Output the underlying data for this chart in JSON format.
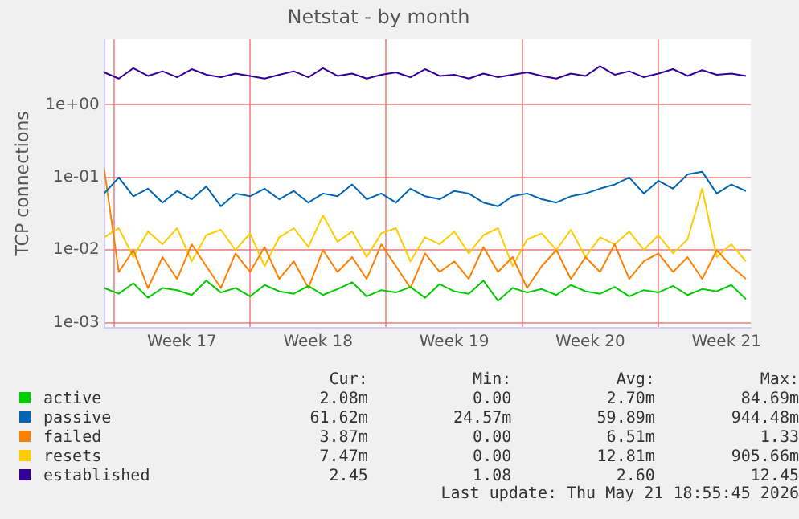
{
  "chart_data": {
    "type": "line",
    "title": "Netstat - by month",
    "ylabel": "TCP connections",
    "log": "y",
    "grid": true,
    "legend": "bottom",
    "marker": "none",
    "line_style": "solid",
    "xlim": [
      "2026-04-19T12:00",
      "2026-05-22T18:00"
    ],
    "xticks": [
      {
        "value": "2026-04-20T00:00",
        "label": null
      },
      {
        "value": "2026-04-23T12:00",
        "label": "Week 17"
      },
      {
        "value": "2026-04-27T00:00",
        "label": null
      },
      {
        "value": "2026-04-30T12:00",
        "label": "Week 18"
      },
      {
        "value": "2026-05-04T00:00",
        "label": null
      },
      {
        "value": "2026-05-07T12:00",
        "label": "Week 19"
      },
      {
        "value": "2026-05-11T00:00",
        "label": null
      },
      {
        "value": "2026-05-14T12:00",
        "label": "Week 20"
      },
      {
        "value": "2026-05-18T00:00",
        "label": null
      },
      {
        "value": "2026-05-21T12:00",
        "label": "Week 21"
      }
    ],
    "ylim": [
      0.00085,
      8
    ],
    "yticks": [
      {
        "value": 0.001,
        "label": "1e-03"
      },
      {
        "value": 0.01,
        "label": "1e-02"
      },
      {
        "value": 0.1,
        "label": "1e-01"
      },
      {
        "value": 1,
        "label": "1e+00"
      }
    ],
    "x": [
      "2026-04-19T12:00",
      "2026-04-20T06:00",
      "2026-04-21T00:00",
      "2026-04-21T18:00",
      "2026-04-22T12:00",
      "2026-04-23T06:00",
      "2026-04-24T00:00",
      "2026-04-24T18:00",
      "2026-04-25T12:00",
      "2026-04-26T06:00",
      "2026-04-27T00:00",
      "2026-04-27T18:00",
      "2026-04-28T12:00",
      "2026-04-29T06:00",
      "2026-04-30T00:00",
      "2026-04-30T18:00",
      "2026-05-01T12:00",
      "2026-05-02T06:00",
      "2026-05-03T00:00",
      "2026-05-03T18:00",
      "2026-05-04T12:00",
      "2026-05-05T06:00",
      "2026-05-06T00:00",
      "2026-05-06T18:00",
      "2026-05-07T12:00",
      "2026-05-08T06:00",
      "2026-05-09T00:00",
      "2026-05-09T18:00",
      "2026-05-10T12:00",
      "2026-05-11T06:00",
      "2026-05-12T00:00",
      "2026-05-12T18:00",
      "2026-05-13T12:00",
      "2026-05-14T06:00",
      "2026-05-15T00:00",
      "2026-05-15T18:00",
      "2026-05-16T12:00",
      "2026-05-17T06:00",
      "2026-05-18T00:00",
      "2026-05-18T18:00",
      "2026-05-19T12:00",
      "2026-05-20T06:00",
      "2026-05-21T00:00",
      "2026-05-21T18:00",
      "2026-05-22T12:00"
    ],
    "series": [
      {
        "name": "active",
        "color": "#00cc00",
        "values": [
          0.003,
          0.0025,
          0.0035,
          0.0022,
          0.003,
          0.0028,
          0.0024,
          0.0038,
          0.0026,
          0.003,
          0.0023,
          0.0033,
          0.0027,
          0.0025,
          0.0032,
          0.0024,
          0.0029,
          0.0036,
          0.0023,
          0.0028,
          0.0026,
          0.0031,
          0.0022,
          0.0034,
          0.0027,
          0.0025,
          0.0038,
          0.002,
          0.003,
          0.0026,
          0.0029,
          0.0024,
          0.0033,
          0.0027,
          0.0025,
          0.0031,
          0.0023,
          0.0028,
          0.0026,
          0.0032,
          0.0024,
          0.0029,
          0.0027,
          0.0033,
          0.0021
        ]
      },
      {
        "name": "passive",
        "color": "#0066b3",
        "values": [
          0.06,
          0.1,
          0.055,
          0.07,
          0.045,
          0.065,
          0.05,
          0.075,
          0.04,
          0.06,
          0.055,
          0.07,
          0.05,
          0.065,
          0.045,
          0.06,
          0.055,
          0.08,
          0.05,
          0.06,
          0.045,
          0.07,
          0.055,
          0.05,
          0.065,
          0.06,
          0.045,
          0.04,
          0.055,
          0.06,
          0.05,
          0.045,
          0.055,
          0.06,
          0.07,
          0.08,
          0.1,
          0.06,
          0.09,
          0.07,
          0.11,
          0.12,
          0.06,
          0.08,
          0.065
        ]
      },
      {
        "name": "failed",
        "color": "#ff8000",
        "values": [
          0.13,
          0.005,
          0.01,
          0.003,
          0.008,
          0.004,
          0.012,
          0.006,
          0.003,
          0.009,
          0.005,
          0.011,
          0.004,
          0.007,
          0.003,
          0.01,
          0.005,
          0.008,
          0.004,
          0.012,
          0.006,
          0.003,
          0.009,
          0.005,
          0.007,
          0.004,
          0.011,
          0.005,
          0.008,
          0.003,
          0.006,
          0.01,
          0.004,
          0.008,
          0.005,
          0.012,
          0.004,
          0.007,
          0.009,
          0.005,
          0.008,
          0.004,
          0.01,
          0.006,
          0.004
        ]
      },
      {
        "name": "resets",
        "color": "#ffcc00",
        "values": [
          0.015,
          0.02,
          0.008,
          0.018,
          0.012,
          0.02,
          0.007,
          0.016,
          0.019,
          0.01,
          0.017,
          0.006,
          0.015,
          0.02,
          0.011,
          0.03,
          0.013,
          0.018,
          0.008,
          0.017,
          0.02,
          0.007,
          0.015,
          0.012,
          0.018,
          0.009,
          0.016,
          0.02,
          0.006,
          0.014,
          0.017,
          0.01,
          0.019,
          0.008,
          0.015,
          0.012,
          0.018,
          0.01,
          0.016,
          0.009,
          0.014,
          0.07,
          0.008,
          0.012,
          0.007
        ]
      },
      {
        "name": "established",
        "color": "#330099",
        "values": [
          2.8,
          2.3,
          3.2,
          2.5,
          2.9,
          2.4,
          3.1,
          2.6,
          2.4,
          2.7,
          2.5,
          2.3,
          2.6,
          2.9,
          2.4,
          3.2,
          2.5,
          2.7,
          2.3,
          2.6,
          2.8,
          2.4,
          3.1,
          2.5,
          2.6,
          2.3,
          2.7,
          2.4,
          2.6,
          2.8,
          2.5,
          2.3,
          2.7,
          2.5,
          3.4,
          2.6,
          2.9,
          2.4,
          2.7,
          3.1,
          2.5,
          3.0,
          2.6,
          2.7,
          2.5
        ]
      }
    ],
    "annotations": [
      "Cur:",
      "Min:",
      "Avg:",
      "Max:",
      "2.08m",
      "0.00",
      "2.70m",
      "84.69m",
      "61.62m",
      "24.57m",
      "59.89m",
      "944.48m",
      "3.87m",
      "0.00",
      "6.51m",
      "1.33",
      "7.47m",
      "0.00",
      "12.81m",
      "905.66m",
      "2.45",
      "1.08",
      "2.60",
      "12.45",
      "Last update: Thu May 21 18:55:45 2026"
    ]
  }
}
